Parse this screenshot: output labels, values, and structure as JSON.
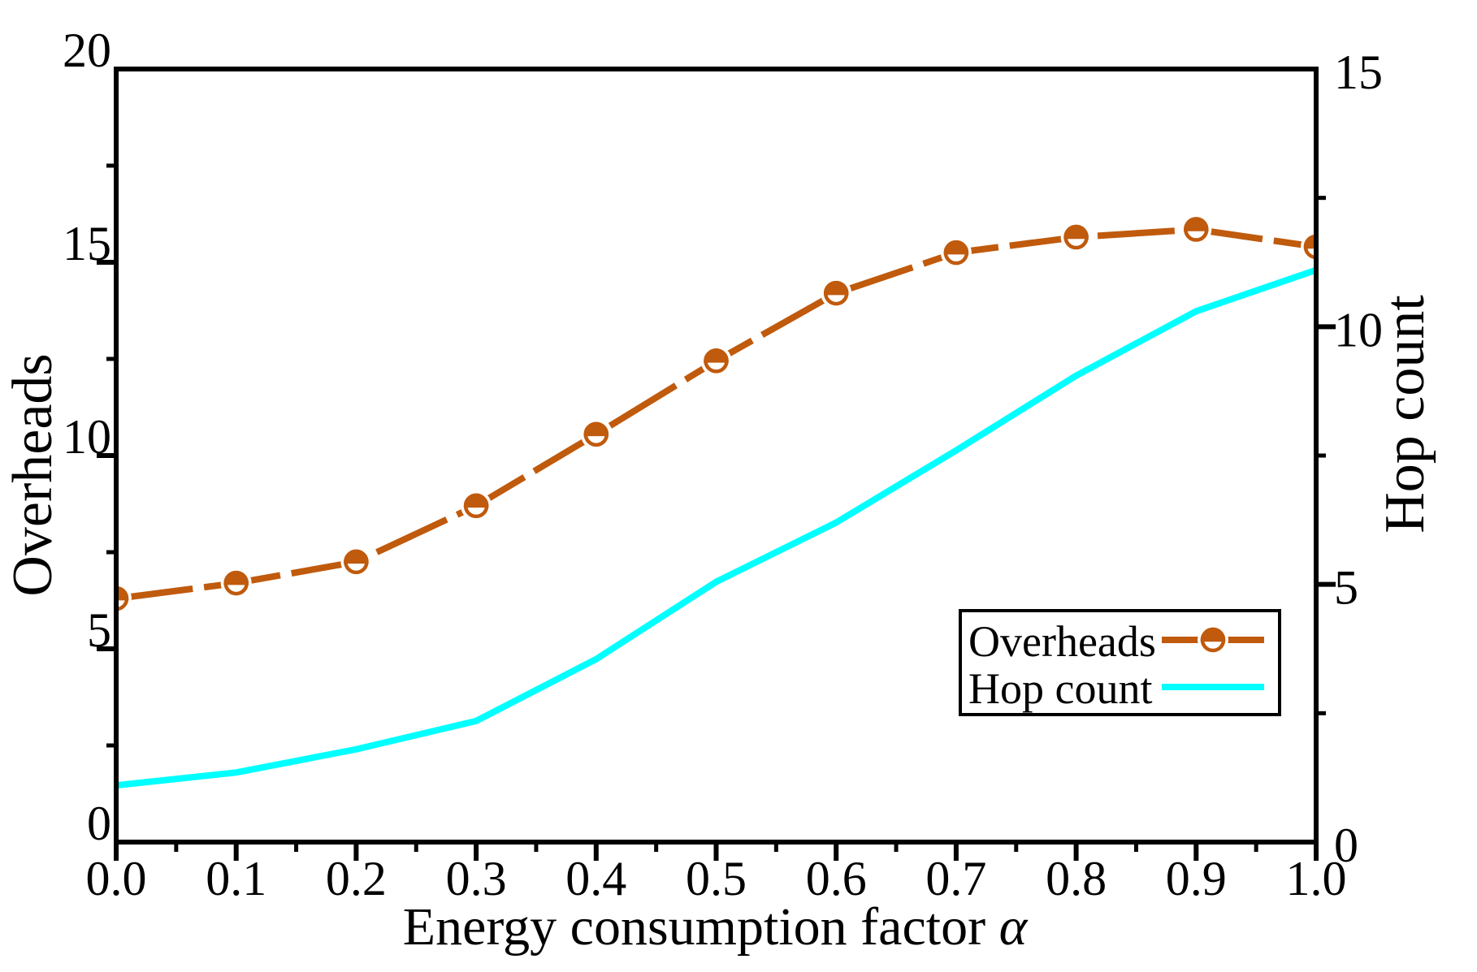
{
  "page": {
    "background_color": "#ffffff"
  },
  "chart_data": {
    "type": "line",
    "title": "",
    "xlabel": "Energy consumption factor α",
    "x": [
      0.0,
      0.1,
      0.2,
      0.3,
      0.4,
      0.5,
      0.6,
      0.7,
      0.8,
      0.9,
      1.0
    ],
    "x_tick_labels": [
      "0.0",
      "0.1",
      "0.2",
      "0.3",
      "0.4",
      "0.5",
      "0.6",
      "0.7",
      "0.8",
      "0.9",
      "1.0"
    ],
    "axes": {
      "x": {
        "min": 0.0,
        "max": 1.0,
        "major_tick_step": 0.1,
        "minor_tick_step": 0.05
      },
      "left": {
        "label": "Overheads",
        "min": 0,
        "max": 20,
        "major_tick_step": 5,
        "minor_tick_step": 2.5,
        "tick_labels": [
          "0",
          "5",
          "10",
          "15",
          "20"
        ]
      },
      "right": {
        "label": "Hop count",
        "min": 0,
        "max": 15,
        "major_tick_step": 5,
        "minor_tick_step": 2.5,
        "tick_labels": [
          "0",
          "5",
          "10",
          "15"
        ]
      }
    },
    "series": [
      {
        "name": "Overheads",
        "axis": "left",
        "color": "#c05a0c",
        "line_style": "dashed",
        "marker": "half-filled-circle",
        "values": [
          6.3,
          6.7,
          7.25,
          8.7,
          10.55,
          12.45,
          14.2,
          15.25,
          15.65,
          15.85,
          15.4
        ]
      },
      {
        "name": "Hop count",
        "axis": "right",
        "color": "#00ffff",
        "line_style": "solid",
        "marker": "none",
        "values": [
          1.1,
          1.35,
          1.8,
          2.35,
          3.55,
          5.05,
          6.2,
          7.6,
          9.05,
          10.3,
          11.1
        ]
      }
    ],
    "legend": {
      "position": "middle-right",
      "border": true,
      "entries": [
        "Overheads",
        "Hop count"
      ]
    },
    "grid": false
  }
}
